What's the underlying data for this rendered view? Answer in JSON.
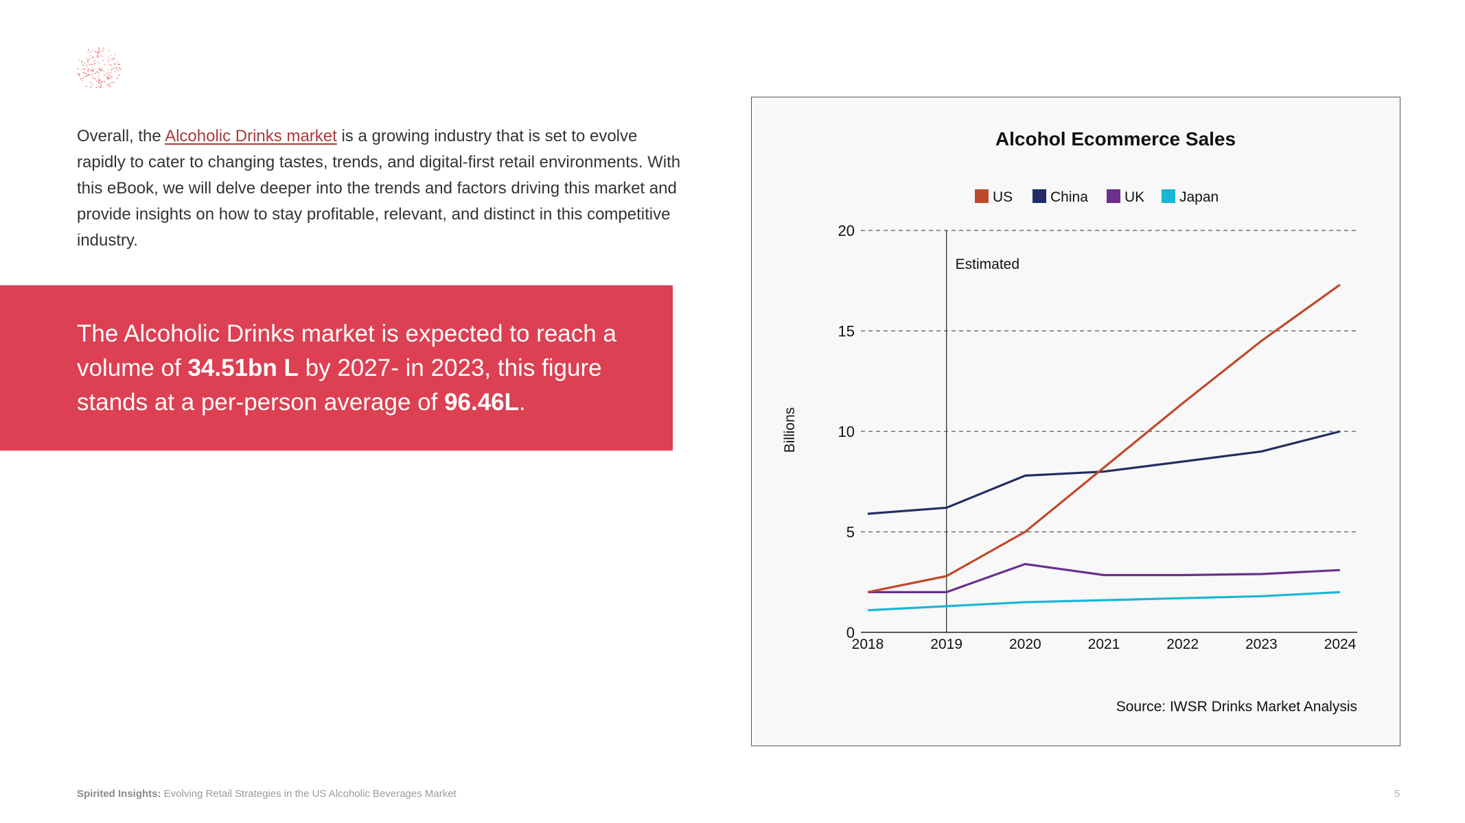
{
  "intro": {
    "prefix": "Overall, the ",
    "link": "Alcoholic Drinks market",
    "suffix": " is a growing industry that is set to evolve rapidly to cater to changing tastes, trends, and digital-first retail environments. With this eBook, we will delve deeper into the trends and factors driving this market and provide insights on how to stay profitable, relevant, and distinct in this competitive industry."
  },
  "banner": {
    "part1": "The Alcoholic Drinks market is expected to reach a volume of ",
    "bold1": "34.51bn L",
    "part2": " by 2027- in 2023, this figure stands at a per-person average of ",
    "bold2": "96.46L",
    "part3": "."
  },
  "footer": {
    "brand": "Spirited Insights:",
    "subtitle": " Evolving Retail Strategies in the US Alcoholic Beverages Market",
    "page": "5"
  },
  "colors": {
    "accent": "#dc4052",
    "link": "#a93a3a",
    "us": "#c0482a",
    "china": "#232d63",
    "uk": "#6b2f8c",
    "japan": "#19b6d6"
  },
  "chart_data": {
    "type": "line",
    "title": "Alcohol Ecommerce Sales",
    "ylabel": "Billions",
    "xlabel": "",
    "source": "Source: IWSR Drinks Market Analysis",
    "annotation": "Estimated",
    "annotation_x": "2019",
    "categories": [
      "2018",
      "2019",
      "2020",
      "2021",
      "2022",
      "2023",
      "2024"
    ],
    "ylim": [
      0,
      20
    ],
    "yticks": [
      "0",
      "5",
      "10",
      "15",
      "20"
    ],
    "grid": "dashed horizontal",
    "legend_position": "top",
    "series": [
      {
        "name": "US",
        "color": "#c0482a",
        "values": [
          2.0,
          2.8,
          5.0,
          8.2,
          11.4,
          14.5,
          17.3
        ]
      },
      {
        "name": "China",
        "color": "#232d63",
        "values": [
          5.9,
          6.2,
          7.8,
          8.0,
          8.5,
          9.0,
          10.0
        ]
      },
      {
        "name": "UK",
        "color": "#6b2f8c",
        "values": [
          2.0,
          2.0,
          3.4,
          2.85,
          2.85,
          2.9,
          3.1
        ]
      },
      {
        "name": "Japan",
        "color": "#19b6d6",
        "values": [
          1.1,
          1.3,
          1.5,
          1.6,
          1.7,
          1.8,
          2.0
        ]
      }
    ]
  }
}
